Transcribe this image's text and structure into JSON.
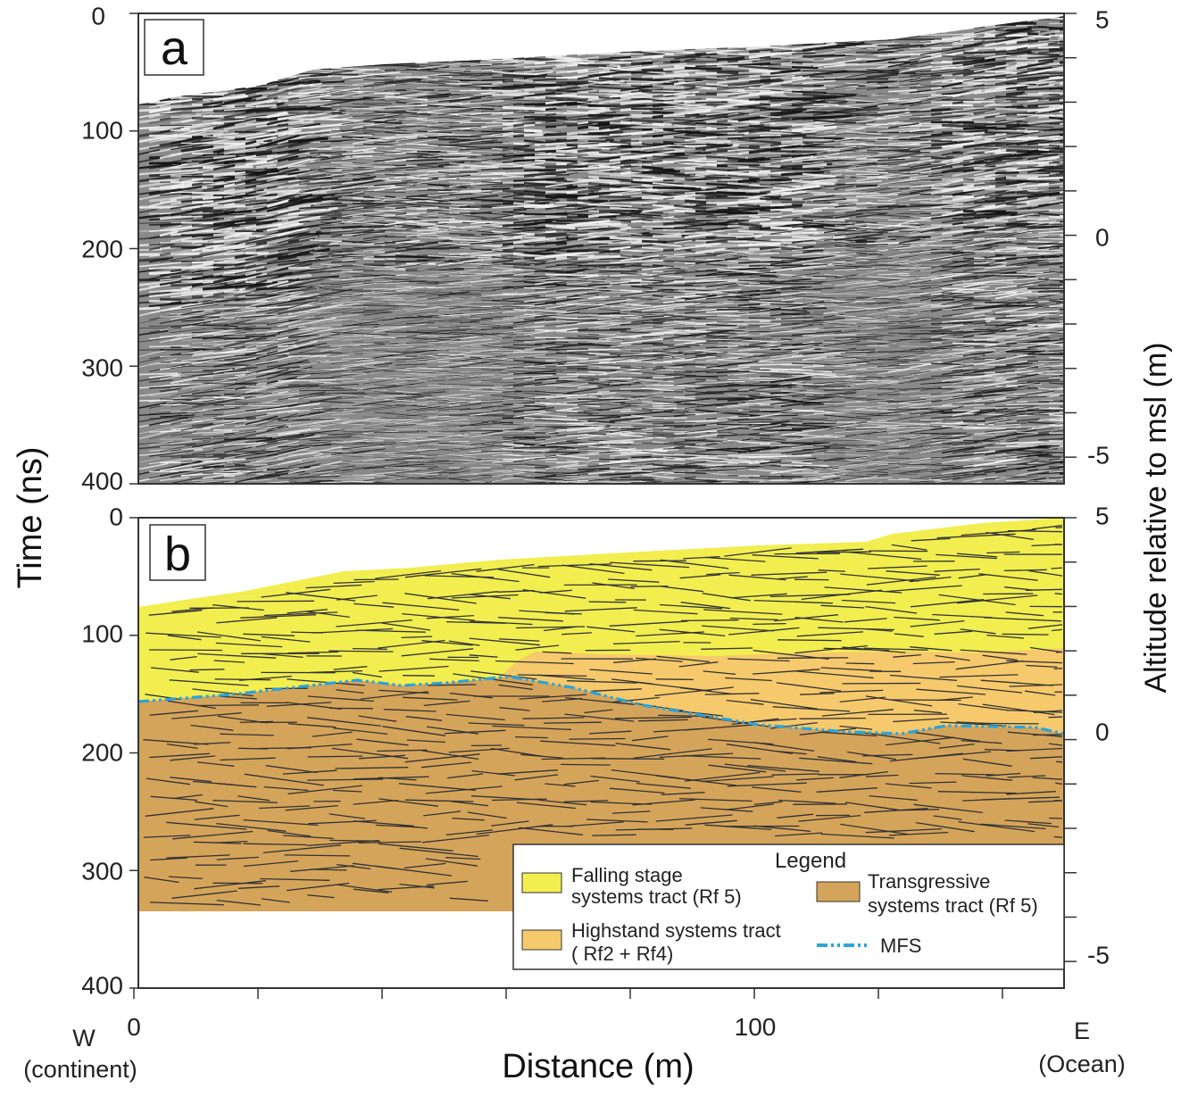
{
  "figure": {
    "colors": {
      "falling_stage": "#f2ee50",
      "highstand": "#f6c96c",
      "transgressive": "#d5a45b",
      "mfs_line": "#29a4dc",
      "reflector": "#333333",
      "radar_bg": "#8a8a8a"
    }
  },
  "axes": {
    "time_ticks": [
      "0",
      "100",
      "200",
      "300",
      "400"
    ],
    "altitude_ticks": [
      "5",
      "0",
      "-5"
    ],
    "distance_ticks": [
      "0",
      "100"
    ],
    "time_label": "Time (ns)",
    "altitude_label": "Altitude relative  to msl (m)",
    "distance_label": "Distance (m)",
    "west_label": "W",
    "west_sub": "(continent)",
    "east_label": "E",
    "east_sub": "(Ocean)"
  },
  "panel_a": {
    "letter": "a"
  },
  "panel_b": {
    "letter": "b"
  },
  "legend": {
    "title": "Legend",
    "falling_line1": "Falling stage",
    "falling_line2": "systems tract (Rf 5)",
    "transgressive_line1": "Transgressive",
    "transgressive_line2": "systems tract (Rf 5)",
    "highstand_line1": "Highstand systems tract",
    "highstand_line2": "( Rf2 + Rf4)",
    "mfs": "MFS"
  }
}
